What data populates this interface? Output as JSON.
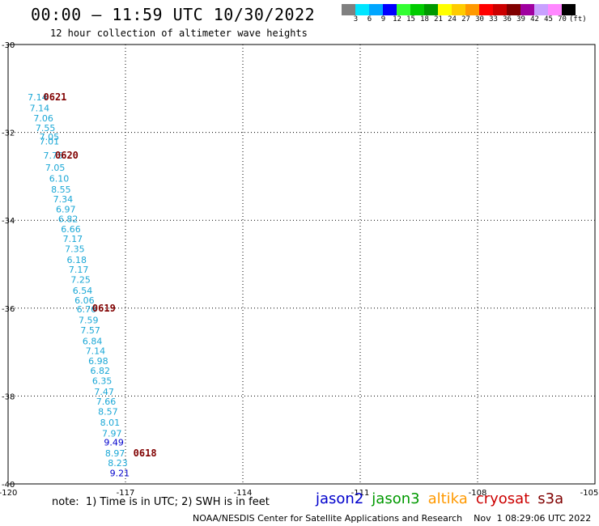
{
  "header": {
    "title": "00:00 – 11:59 UTC 10/30/2022",
    "subtitle": "12 hour collection of altimeter wave heights"
  },
  "scale": {
    "colors": [
      "#808080",
      "#00e5ff",
      "#00a6ff",
      "#0000ff",
      "#33ff33",
      "#00cc00",
      "#009900",
      "#ffff00",
      "#ffcc00",
      "#ff9900",
      "#ff0000",
      "#cc0000",
      "#800000",
      "#a000a0",
      "#c8a0ff",
      "#ff88ff",
      "#000000"
    ],
    "labels": [
      "3",
      "6",
      "9",
      "12",
      "15",
      "18",
      "21",
      "24",
      "27",
      "30",
      "33",
      "36",
      "39",
      "42",
      "45",
      "70"
    ],
    "unit": "(ft)"
  },
  "chart_data": {
    "type": "scatter",
    "x_ticks": [
      "-120",
      "-117",
      "-114",
      "-111",
      "-108",
      "-105"
    ],
    "y_ticks": [
      "-30",
      "-32",
      "-34",
      "-36",
      "-38",
      "-40"
    ],
    "xlim": [
      -120,
      -105
    ],
    "ylim": [
      -40,
      -30
    ],
    "grid": true,
    "observations": [
      {
        "label": "7.14",
        "lon": -119.5,
        "lat": -31.2,
        "color": "#1aa7d6"
      },
      {
        "label": "7.14",
        "lon": -119.45,
        "lat": -31.45,
        "color": "#1aa7d6"
      },
      {
        "label": "7.06",
        "lon": -119.35,
        "lat": -31.68,
        "color": "#1aa7d6"
      },
      {
        "label": "7.55",
        "lon": -119.3,
        "lat": -31.9,
        "color": "#1aa7d6"
      },
      {
        "label": "7.05",
        "lon": -119.2,
        "lat": -32.1,
        "color": "#1aa7d6"
      },
      {
        "label": "7.01",
        "lon": -119.2,
        "lat": -32.2,
        "color": "#1aa7d6"
      },
      {
        "label": "7.75",
        "lon": -119.1,
        "lat": -32.52,
        "color": "#1aa7d6"
      },
      {
        "label": "7.05",
        "lon": -119.05,
        "lat": -32.8,
        "color": "#1aa7d6"
      },
      {
        "label": "6.10",
        "lon": -118.95,
        "lat": -33.05,
        "color": "#1aa7d6"
      },
      {
        "label": "8.55",
        "lon": -118.9,
        "lat": -33.3,
        "color": "#1aa7d6"
      },
      {
        "label": "7.34",
        "lon": -118.85,
        "lat": -33.52,
        "color": "#1aa7d6"
      },
      {
        "label": "6.97",
        "lon": -118.78,
        "lat": -33.75,
        "color": "#1aa7d6"
      },
      {
        "label": "6.82",
        "lon": -118.72,
        "lat": -33.97,
        "color": "#1aa7d6"
      },
      {
        "label": "6.66",
        "lon": -118.65,
        "lat": -34.2,
        "color": "#1aa7d6"
      },
      {
        "label": "7.17",
        "lon": -118.6,
        "lat": -34.42,
        "color": "#1aa7d6"
      },
      {
        "label": "7.35",
        "lon": -118.55,
        "lat": -34.65,
        "color": "#1aa7d6"
      },
      {
        "label": "6.18",
        "lon": -118.5,
        "lat": -34.9,
        "color": "#1aa7d6"
      },
      {
        "label": "7.17",
        "lon": -118.45,
        "lat": -35.12,
        "color": "#1aa7d6"
      },
      {
        "label": "7.25",
        "lon": -118.4,
        "lat": -35.35,
        "color": "#1aa7d6"
      },
      {
        "label": "6.54",
        "lon": -118.35,
        "lat": -35.6,
        "color": "#1aa7d6"
      },
      {
        "label": "6.06",
        "lon": -118.3,
        "lat": -35.82,
        "color": "#1aa7d6"
      },
      {
        "label": "6.76",
        "lon": -118.25,
        "lat": -36.02,
        "color": "#1aa7d6"
      },
      {
        "label": "7.59",
        "lon": -118.2,
        "lat": -36.27,
        "color": "#1aa7d6"
      },
      {
        "label": "7.57",
        "lon": -118.15,
        "lat": -36.5,
        "color": "#1aa7d6"
      },
      {
        "label": "6.84",
        "lon": -118.1,
        "lat": -36.75,
        "color": "#1aa7d6"
      },
      {
        "label": "7.14",
        "lon": -118.02,
        "lat": -36.97,
        "color": "#1aa7d6"
      },
      {
        "label": "6.98",
        "lon": -117.95,
        "lat": -37.2,
        "color": "#1aa7d6"
      },
      {
        "label": "6.82",
        "lon": -117.9,
        "lat": -37.42,
        "color": "#1aa7d6"
      },
      {
        "label": "6.35",
        "lon": -117.85,
        "lat": -37.65,
        "color": "#1aa7d6"
      },
      {
        "label": "7.47",
        "lon": -117.8,
        "lat": -37.9,
        "color": "#1aa7d6"
      },
      {
        "label": "7.66",
        "lon": -117.75,
        "lat": -38.12,
        "color": "#1aa7d6"
      },
      {
        "label": "8.57",
        "lon": -117.7,
        "lat": -38.35,
        "color": "#1aa7d6"
      },
      {
        "label": "8.01",
        "lon": -117.65,
        "lat": -38.6,
        "color": "#1aa7d6"
      },
      {
        "label": "7.97",
        "lon": -117.6,
        "lat": -38.85,
        "color": "#1aa7d6"
      },
      {
        "label": "9.49",
        "lon": -117.55,
        "lat": -39.05,
        "color": "#0000cc"
      },
      {
        "label": "8.97",
        "lon": -117.52,
        "lat": -39.3,
        "color": "#1aa7d6"
      },
      {
        "label": "8.23",
        "lon": -117.45,
        "lat": -39.52,
        "color": "#1aa7d6"
      },
      {
        "label": "9.21",
        "lon": -117.4,
        "lat": -39.75,
        "color": "#0000cc"
      }
    ],
    "time_labels": [
      {
        "label": "0621",
        "lon": -119.1,
        "lat": -31.2
      },
      {
        "label": "0620",
        "lon": -118.8,
        "lat": -32.52
      },
      {
        "label": "0619",
        "lon": -117.85,
        "lat": -36.0
      },
      {
        "label": "0618",
        "lon": -116.8,
        "lat": -39.3
      }
    ]
  },
  "footer": {
    "note": "note:  1) Time is in UTC; 2) SWH is in feet",
    "satellites": [
      {
        "name": "jason2",
        "color": "#0000cc"
      },
      {
        "name": "jason3",
        "color": "#009900"
      },
      {
        "name": "altika",
        "color": "#ff9900"
      },
      {
        "name": "cryosat",
        "color": "#cc0000"
      },
      {
        "name": "s3a",
        "color": "#800000"
      }
    ],
    "credit": "NOAA/NESDIS Center for Satellite Applications and Research    Nov  1 08:29:06 UTC 2022"
  }
}
